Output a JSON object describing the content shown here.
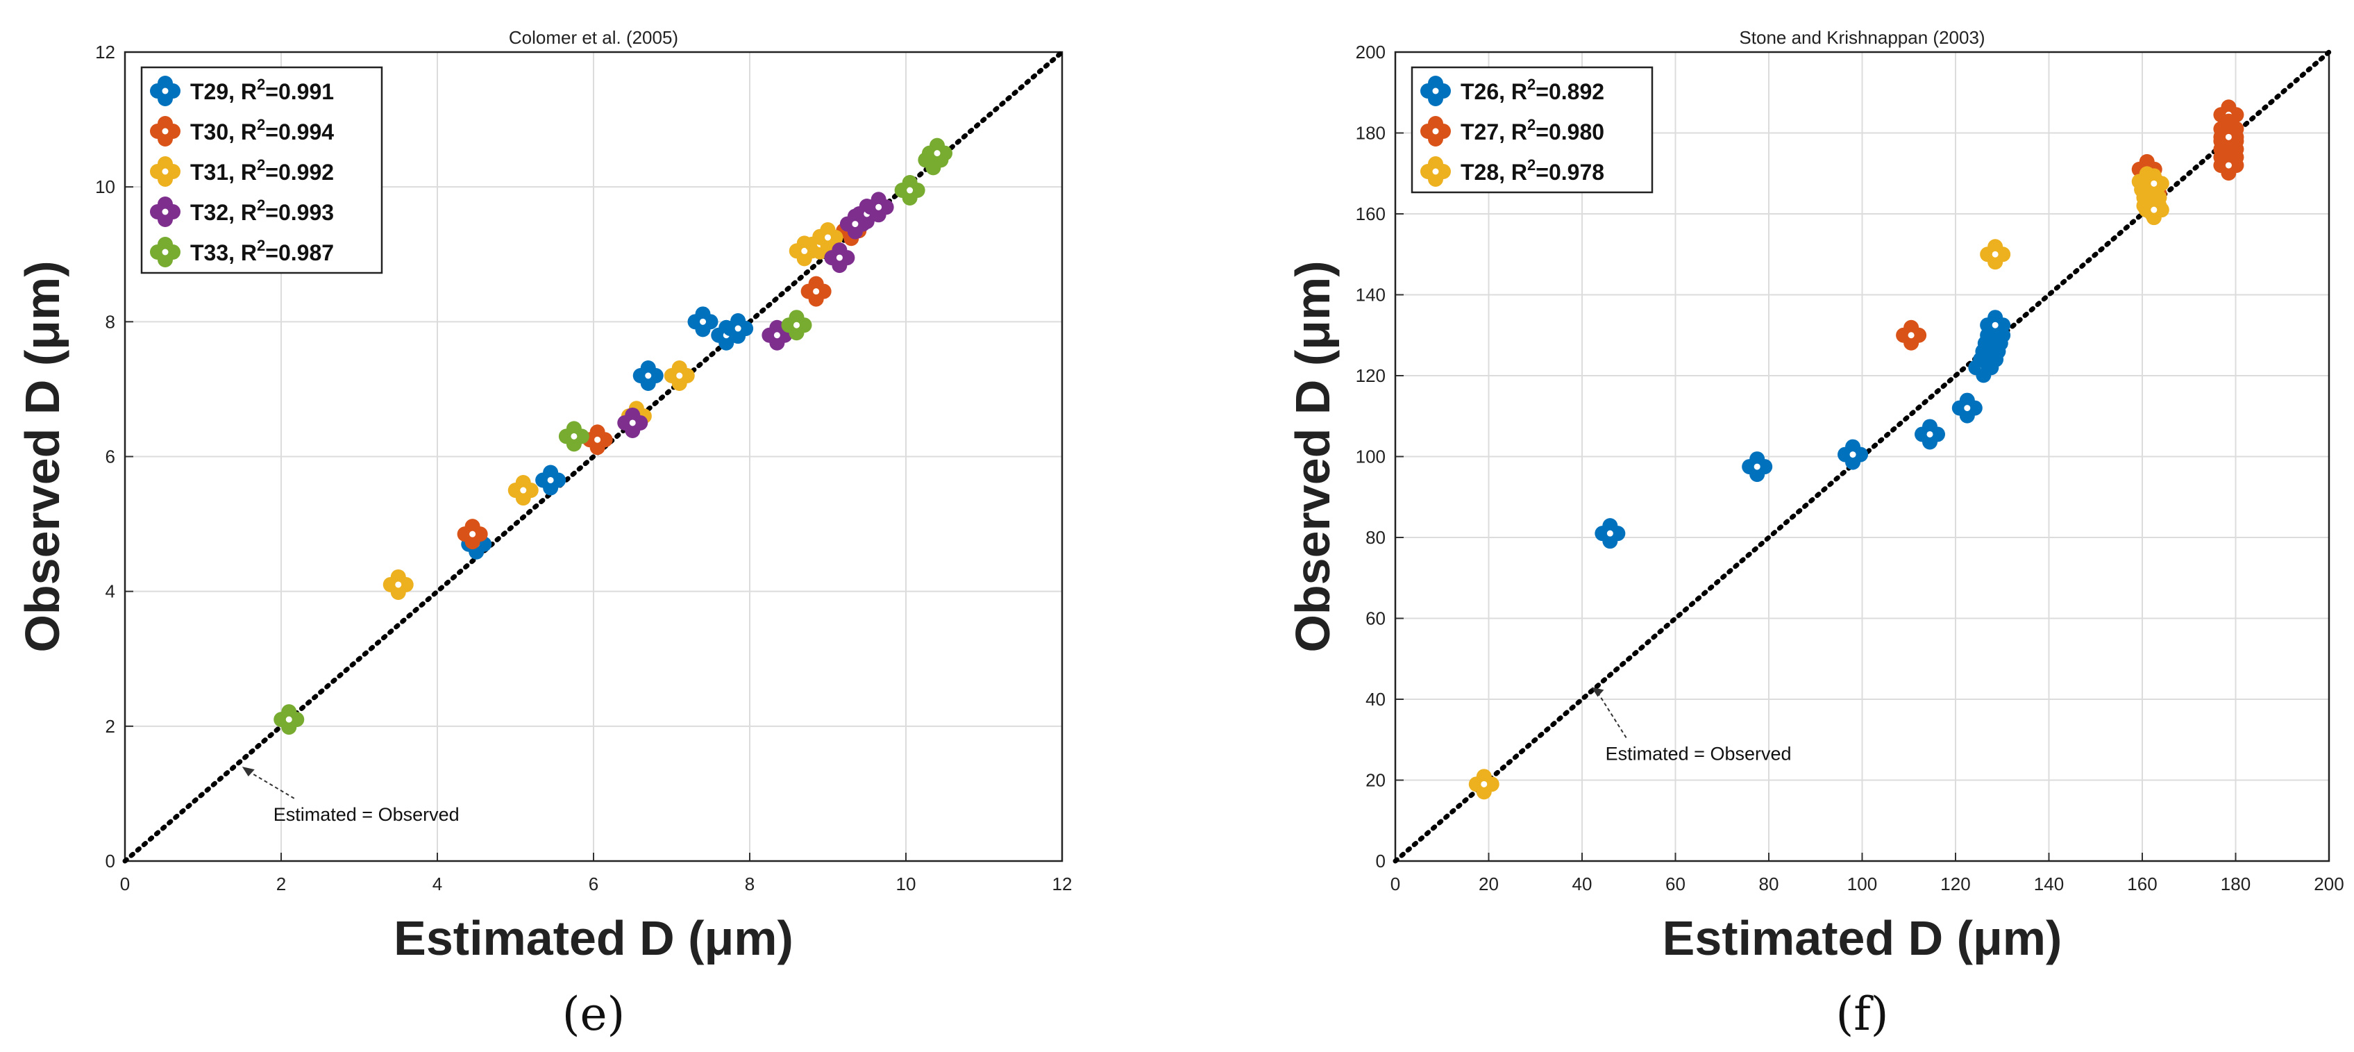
{
  "chart_data": [
    {
      "panel": "e",
      "type": "scatter",
      "title": "Colomer et al. (2005)",
      "xlabel": "Estimated D (μm)",
      "ylabel": "Observed D (μm)",
      "xlim": [
        0,
        12
      ],
      "ylim": [
        0,
        12
      ],
      "xticks": [
        "0",
        "2",
        "4",
        "6",
        "8",
        "10",
        "12"
      ],
      "yticks": [
        "0",
        "2",
        "4",
        "6",
        "8",
        "10",
        "12"
      ],
      "grid": true,
      "legend_position": "top-left",
      "caption": "(e)",
      "reference_line": {
        "label": "Estimated = Observed",
        "from": [
          0,
          0
        ],
        "to": [
          12,
          12
        ]
      },
      "annotation": {
        "text": "Estimated = Observed",
        "arrow_target": [
          1.5,
          1.4
        ],
        "text_at": [
          1.9,
          0.6
        ]
      },
      "series": [
        {
          "name": "T29",
          "r2_label": "R",
          "r2_exp": "2",
          "r2_value": "=0.991",
          "color": "#0072BD",
          "x": [
            4.5,
            5.45,
            6.7,
            7.4,
            7.7,
            7.85
          ],
          "y": [
            4.7,
            5.65,
            7.2,
            8.0,
            7.8,
            7.9
          ]
        },
        {
          "name": "T30",
          "r2_label": "R",
          "r2_exp": "2",
          "r2_value": "=0.994",
          "color": "#D95319",
          "x": [
            4.45,
            6.05,
            8.85,
            9.3
          ],
          "y": [
            4.85,
            6.25,
            8.45,
            9.35
          ]
        },
        {
          "name": "T31",
          "r2_label": "R",
          "r2_exp": "2",
          "r2_value": "=0.992",
          "color": "#EDB120",
          "x": [
            3.5,
            5.1,
            6.55,
            7.1,
            8.7,
            8.9,
            9.0
          ],
          "y": [
            4.1,
            5.5,
            6.6,
            7.2,
            9.05,
            9.15,
            9.25
          ]
        },
        {
          "name": "T32",
          "r2_label": "R",
          "r2_exp": "2",
          "r2_value": "=0.993",
          "color": "#7E2F8E",
          "x": [
            6.5,
            8.35,
            9.15,
            9.35,
            9.5,
            9.65
          ],
          "y": [
            6.5,
            7.8,
            8.95,
            9.45,
            9.6,
            9.7
          ]
        },
        {
          "name": "T33",
          "r2_label": "R",
          "r2_exp": "2",
          "r2_value": "=0.987",
          "color": "#77AC30",
          "x": [
            2.1,
            5.75,
            8.6,
            10.05,
            10.35,
            10.4
          ],
          "y": [
            2.1,
            6.3,
            7.95,
            9.95,
            10.4,
            10.5
          ]
        }
      ]
    },
    {
      "panel": "f",
      "type": "scatter",
      "title": "Stone and Krishnappan (2003)",
      "xlabel": "Estimated D (μm)",
      "ylabel": "Observed D (μm)",
      "xlim": [
        0,
        200
      ],
      "ylim": [
        0,
        200
      ],
      "xticks": [
        "0",
        "20",
        "40",
        "60",
        "80",
        "100",
        "120",
        "140",
        "160",
        "180",
        "200"
      ],
      "yticks": [
        "0",
        "20",
        "40",
        "60",
        "80",
        "100",
        "120",
        "140",
        "160",
        "180",
        "200"
      ],
      "grid": true,
      "legend_position": "top-left",
      "caption": "(f)",
      "reference_line": {
        "label": "Estimated = Observed",
        "from": [
          0,
          0
        ],
        "to": [
          200,
          200
        ]
      },
      "annotation": {
        "text": "Estimated = Observed",
        "arrow_target": [
          42,
          43
        ],
        "text_at": [
          45,
          25
        ]
      },
      "series": [
        {
          "name": "T26",
          "r2_label": "R",
          "r2_exp": "2",
          "r2_value": "=0.892",
          "color": "#0072BD",
          "x": [
            46,
            77.5,
            98,
            114.5,
            122.5,
            126,
            127,
            127.5,
            128,
            128.5,
            128.5
          ],
          "y": [
            81,
            97.5,
            100.5,
            105.5,
            112,
            122,
            124,
            126,
            128,
            130,
            132.5
          ]
        },
        {
          "name": "T27",
          "r2_label": "R",
          "r2_exp": "2",
          "r2_value": "=0.980",
          "color": "#D95319",
          "x": [
            110.5,
            161,
            161.5,
            162,
            178.5,
            178.5,
            178.5,
            178.5,
            178.5,
            178.5,
            178.5
          ],
          "y": [
            130,
            171,
            168,
            165,
            184.5,
            181,
            178,
            176,
            174,
            172,
            179
          ]
        },
        {
          "name": "T28",
          "r2_label": "R",
          "r2_exp": "2",
          "r2_value": "=0.978",
          "color": "#EDB120",
          "x": [
            19,
            128.5,
            161,
            161.5,
            162,
            162,
            162.5,
            162.5
          ],
          "y": [
            19,
            150,
            168,
            166,
            164,
            162,
            161,
            167.5
          ]
        }
      ]
    }
  ]
}
